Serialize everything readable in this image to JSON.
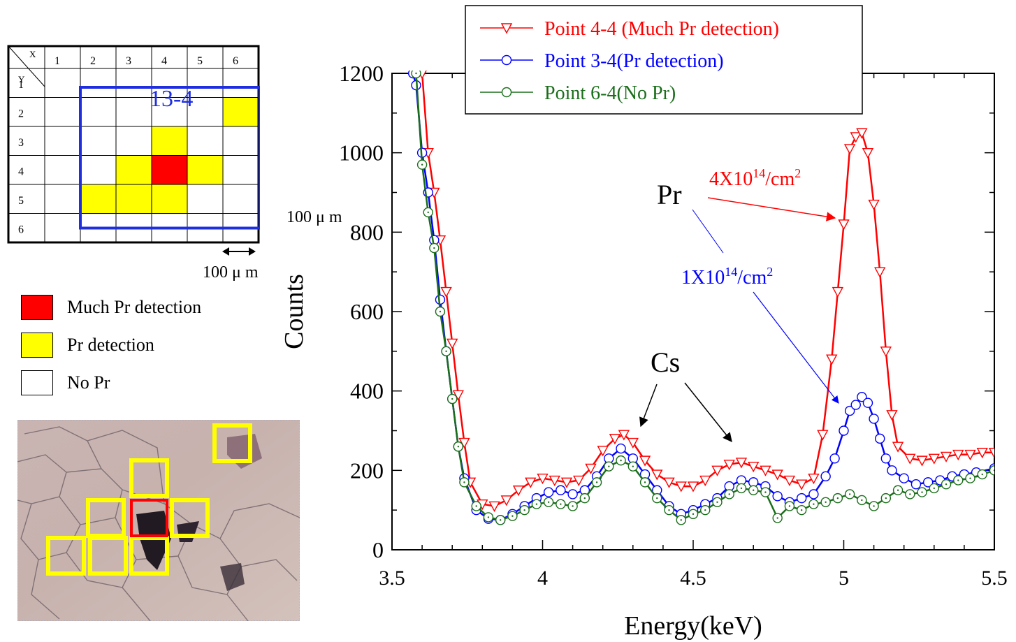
{
  "grid_map": {
    "corner_x": "X",
    "corner_y": "Y",
    "columns": [
      "1",
      "2",
      "3",
      "4",
      "5",
      "6"
    ],
    "rows": [
      "1",
      "2",
      "3",
      "4",
      "5",
      "6"
    ],
    "region_label": "13-4",
    "dim_vertical": "100 μ m",
    "dim_horizontal": "100 μ m",
    "cells": [
      {
        "x": 6,
        "y": 2,
        "status": "pr"
      },
      {
        "x": 4,
        "y": 3,
        "status": "pr"
      },
      {
        "x": 3,
        "y": 4,
        "status": "pr"
      },
      {
        "x": 4,
        "y": 4,
        "status": "much"
      },
      {
        "x": 5,
        "y": 4,
        "status": "pr"
      },
      {
        "x": 2,
        "y": 5,
        "status": "pr"
      },
      {
        "x": 3,
        "y": 5,
        "status": "pr"
      },
      {
        "x": 4,
        "y": 5,
        "status": "pr"
      }
    ],
    "colors": {
      "much": "#ff0000",
      "pr": "#ffff00",
      "none": "#ffffff",
      "region": "#1f2fe0"
    }
  },
  "map_legend": [
    {
      "label": "Much Pr detection",
      "color": "#ff0000"
    },
    {
      "label": "Pr detection",
      "color": "#ffff00"
    },
    {
      "label": "No Pr",
      "color": "#ffffff"
    }
  ],
  "chart_data": {
    "type": "line",
    "xlabel": "Energy(keV)",
    "ylabel": "Counts",
    "xlim": [
      3.5,
      5.5
    ],
    "ylim": [
      0,
      1200
    ],
    "xticks": [
      3.5,
      4,
      4.5,
      5,
      5.5
    ],
    "xtick_labels": [
      "3.5",
      "4",
      "4.5",
      "5",
      "5.5"
    ],
    "yticks": [
      0,
      200,
      400,
      600,
      800,
      1000,
      1200
    ],
    "ytick_labels": [
      "0",
      "200",
      "400",
      "600",
      "800",
      "1000",
      "1200"
    ],
    "grid": false,
    "legend_position": "top",
    "series": [
      {
        "name": "Point 4-4 (Much Pr detection)",
        "color": "#ff0000",
        "marker": "triangle-down",
        "points": [
          [
            3.6,
            1200
          ],
          [
            3.62,
            1000
          ],
          [
            3.64,
            900
          ],
          [
            3.66,
            780
          ],
          [
            3.68,
            650
          ],
          [
            3.7,
            520
          ],
          [
            3.72,
            390
          ],
          [
            3.74,
            270
          ],
          [
            3.76,
            170
          ],
          [
            3.8,
            115
          ],
          [
            3.84,
            110
          ],
          [
            3.88,
            125
          ],
          [
            3.92,
            150
          ],
          [
            3.96,
            170
          ],
          [
            4.0,
            180
          ],
          [
            4.04,
            175
          ],
          [
            4.08,
            170
          ],
          [
            4.12,
            175
          ],
          [
            4.16,
            205
          ],
          [
            4.2,
            250
          ],
          [
            4.24,
            280
          ],
          [
            4.27,
            290
          ],
          [
            4.3,
            270
          ],
          [
            4.34,
            225
          ],
          [
            4.38,
            190
          ],
          [
            4.42,
            170
          ],
          [
            4.46,
            160
          ],
          [
            4.5,
            160
          ],
          [
            4.54,
            175
          ],
          [
            4.58,
            200
          ],
          [
            4.62,
            215
          ],
          [
            4.66,
            220
          ],
          [
            4.7,
            210
          ],
          [
            4.74,
            200
          ],
          [
            4.78,
            190
          ],
          [
            4.82,
            175
          ],
          [
            4.86,
            165
          ],
          [
            4.9,
            180
          ],
          [
            4.93,
            290
          ],
          [
            4.96,
            480
          ],
          [
            4.98,
            650
          ],
          [
            5.0,
            820
          ],
          [
            5.02,
            1010
          ],
          [
            5.04,
            1040
          ],
          [
            5.06,
            1050
          ],
          [
            5.08,
            1000
          ],
          [
            5.1,
            870
          ],
          [
            5.12,
            700
          ],
          [
            5.14,
            500
          ],
          [
            5.16,
            340
          ],
          [
            5.18,
            260
          ],
          [
            5.22,
            230
          ],
          [
            5.26,
            225
          ],
          [
            5.3,
            230
          ],
          [
            5.34,
            235
          ],
          [
            5.38,
            240
          ],
          [
            5.42,
            240
          ],
          [
            5.46,
            245
          ],
          [
            5.5,
            245
          ]
        ]
      },
      {
        "name": "Point 3-4(Pr detection)",
        "color": "#0000ff",
        "marker": "circle",
        "points": [
          [
            3.57,
            1200
          ],
          [
            3.58,
            1170
          ],
          [
            3.6,
            1000
          ],
          [
            3.62,
            900
          ],
          [
            3.64,
            780
          ],
          [
            3.66,
            630
          ],
          [
            3.68,
            500
          ],
          [
            3.7,
            380
          ],
          [
            3.72,
            260
          ],
          [
            3.74,
            180
          ],
          [
            3.78,
            100
          ],
          [
            3.82,
            78
          ],
          [
            3.86,
            75
          ],
          [
            3.9,
            90
          ],
          [
            3.94,
            110
          ],
          [
            3.98,
            130
          ],
          [
            4.02,
            145
          ],
          [
            4.06,
            150
          ],
          [
            4.1,
            140
          ],
          [
            4.14,
            150
          ],
          [
            4.18,
            185
          ],
          [
            4.22,
            230
          ],
          [
            4.26,
            255
          ],
          [
            4.3,
            230
          ],
          [
            4.34,
            190
          ],
          [
            4.38,
            150
          ],
          [
            4.42,
            110
          ],
          [
            4.46,
            90
          ],
          [
            4.5,
            100
          ],
          [
            4.54,
            115
          ],
          [
            4.58,
            130
          ],
          [
            4.62,
            160
          ],
          [
            4.66,
            175
          ],
          [
            4.7,
            170
          ],
          [
            4.74,
            160
          ],
          [
            4.78,
            135
          ],
          [
            4.82,
            120
          ],
          [
            4.86,
            130
          ],
          [
            4.9,
            140
          ],
          [
            4.94,
            185
          ],
          [
            4.97,
            230
          ],
          [
            5.0,
            300
          ],
          [
            5.02,
            350
          ],
          [
            5.04,
            365
          ],
          [
            5.06,
            385
          ],
          [
            5.08,
            370
          ],
          [
            5.1,
            330
          ],
          [
            5.12,
            280
          ],
          [
            5.14,
            230
          ],
          [
            5.16,
            200
          ],
          [
            5.2,
            180
          ],
          [
            5.24,
            165
          ],
          [
            5.28,
            170
          ],
          [
            5.32,
            175
          ],
          [
            5.36,
            185
          ],
          [
            5.4,
            190
          ],
          [
            5.44,
            195
          ],
          [
            5.5,
            205
          ]
        ]
      },
      {
        "name": "Point 6-4(No Pr)",
        "color": "#1a6e1a",
        "marker": "circle",
        "points": [
          [
            3.58,
            1200
          ],
          [
            3.6,
            970
          ],
          [
            3.62,
            850
          ],
          [
            3.64,
            760
          ],
          [
            3.66,
            600
          ],
          [
            3.68,
            500
          ],
          [
            3.7,
            380
          ],
          [
            3.72,
            260
          ],
          [
            3.74,
            170
          ],
          [
            3.78,
            110
          ],
          [
            3.82,
            82
          ],
          [
            3.86,
            75
          ],
          [
            3.9,
            85
          ],
          [
            3.94,
            100
          ],
          [
            3.98,
            115
          ],
          [
            4.02,
            120
          ],
          [
            4.06,
            115
          ],
          [
            4.1,
            110
          ],
          [
            4.14,
            130
          ],
          [
            4.18,
            170
          ],
          [
            4.22,
            210
          ],
          [
            4.26,
            225
          ],
          [
            4.3,
            210
          ],
          [
            4.34,
            170
          ],
          [
            4.38,
            130
          ],
          [
            4.42,
            100
          ],
          [
            4.46,
            75
          ],
          [
            4.5,
            90
          ],
          [
            4.54,
            100
          ],
          [
            4.58,
            120
          ],
          [
            4.62,
            140
          ],
          [
            4.66,
            155
          ],
          [
            4.7,
            150
          ],
          [
            4.74,
            145
          ],
          [
            4.78,
            80
          ],
          [
            4.82,
            110
          ],
          [
            4.86,
            100
          ],
          [
            4.9,
            115
          ],
          [
            4.94,
            120
          ],
          [
            4.98,
            130
          ],
          [
            5.02,
            140
          ],
          [
            5.06,
            125
          ],
          [
            5.1,
            110
          ],
          [
            5.14,
            130
          ],
          [
            5.18,
            150
          ],
          [
            5.22,
            140
          ],
          [
            5.26,
            145
          ],
          [
            5.3,
            155
          ],
          [
            5.34,
            165
          ],
          [
            5.38,
            175
          ],
          [
            5.42,
            180
          ],
          [
            5.46,
            190
          ],
          [
            5.5,
            200
          ]
        ]
      }
    ],
    "annotations": {
      "pr": "Pr",
      "cs": "Cs",
      "red_conc_base": "4X10",
      "red_conc_exp": "14",
      "red_conc_unit": "/cm",
      "red_conc_unit_exp": "2",
      "blue_conc_base": "1X10",
      "blue_conc_exp": "14",
      "blue_conc_unit": "/cm",
      "blue_conc_unit_exp": "2"
    }
  }
}
